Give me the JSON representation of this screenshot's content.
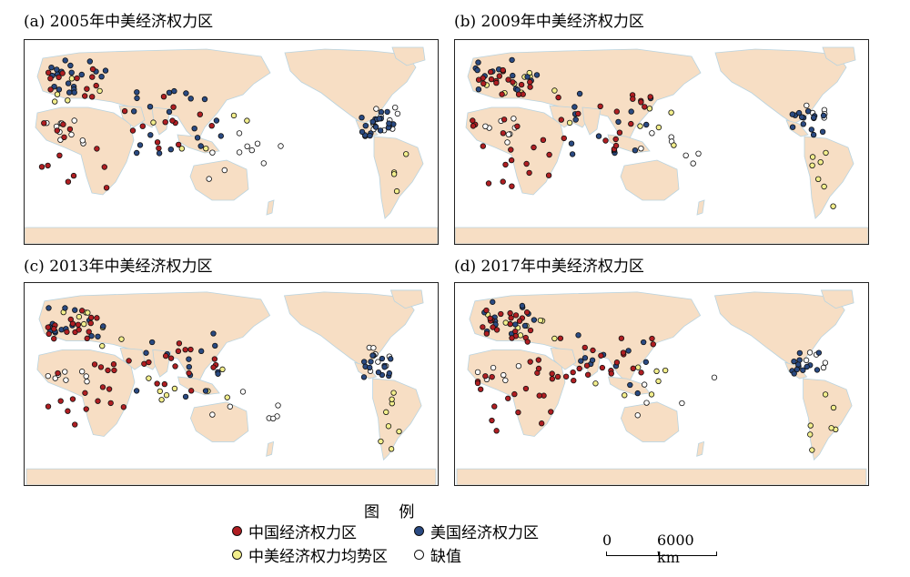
{
  "panels": [
    {
      "title": "(a) 2005年中美经济权力区",
      "year": "2005",
      "dots": {
        "china": 38,
        "us": 60,
        "balance": 14,
        "missing": 30
      }
    },
    {
      "title": "(b) 2009年中美经济权力区",
      "year": "2009",
      "dots": {
        "china": 55,
        "us": 42,
        "balance": 22,
        "missing": 22
      }
    },
    {
      "title": "(c) 2013年中美经济权力区",
      "year": "2013",
      "dots": {
        "china": 52,
        "us": 44,
        "balance": 24,
        "missing": 22
      }
    },
    {
      "title": "(d) 2017年中美经济权力区",
      "year": "2017",
      "dots": {
        "china": 66,
        "us": 38,
        "balance": 22,
        "missing": 16
      }
    }
  ],
  "legend": {
    "title": "图 例",
    "items": [
      {
        "label": "中国经济权力区",
        "color": "#b01e22"
      },
      {
        "label": "美国经济权力区",
        "color": "#2a4a82"
      },
      {
        "label": "中美经济权力均势区",
        "color": "#f2ee8c"
      },
      {
        "label": "缺值",
        "color": "#ffffff"
      }
    ]
  },
  "scale_bar": {
    "zero": "0",
    "distance": "6000 km"
  },
  "colors": {
    "land": "#f7dec4",
    "ocean": "#ffffff",
    "coast": "#b9d3df",
    "outline": "#111111"
  }
}
